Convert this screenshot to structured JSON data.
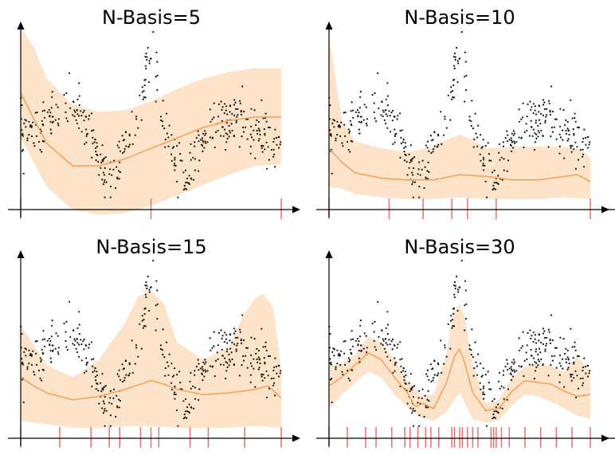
{
  "chart_data": [
    {
      "type": "scatter",
      "title": "N-Basis=5",
      "xlabel": "",
      "ylabel": "",
      "xlim": [
        0,
        1
      ],
      "ylim": [
        -0.05,
        1.0
      ],
      "grid": false,
      "series": [
        {
          "points": "data points"
        },
        {
          "mean_line": [
            [
              0,
              0.62
            ],
            [
              0.05,
              0.47
            ],
            [
              0.1,
              0.33
            ],
            [
              0.2,
              0.2
            ],
            [
              0.3,
              0.2
            ],
            [
              0.4,
              0.24
            ],
            [
              0.5,
              0.3
            ],
            [
              0.6,
              0.36
            ],
            [
              0.7,
              0.42
            ],
            [
              0.8,
              0.46
            ],
            [
              0.9,
              0.48
            ],
            [
              1,
              0.48
            ]
          ]
        },
        {
          "band_upper": [
            [
              0,
              1.0
            ],
            [
              0.05,
              0.88
            ],
            [
              0.1,
              0.7
            ],
            [
              0.2,
              0.55
            ],
            [
              0.3,
              0.51
            ],
            [
              0.4,
              0.52
            ],
            [
              0.5,
              0.57
            ],
            [
              0.6,
              0.64
            ],
            [
              0.7,
              0.7
            ],
            [
              0.8,
              0.74
            ],
            [
              0.9,
              0.76
            ],
            [
              1,
              0.76
            ]
          ]
        },
        {
          "band_lower": [
            [
              0,
              0.36
            ],
            [
              0.05,
              0.22
            ],
            [
              0.1,
              0.08
            ],
            [
              0.2,
              -0.05
            ],
            [
              0.3,
              -0.08
            ],
            [
              0.4,
              -0.07
            ],
            [
              0.5,
              -0.03
            ],
            [
              0.6,
              0.03
            ],
            [
              0.7,
              0.09
            ],
            [
              0.8,
              0.15
            ],
            [
              0.9,
              0.2
            ],
            [
              1,
              0.21
            ]
          ]
        }
      ],
      "knots": [
        0,
        0.5,
        1
      ]
    },
    {
      "type": "scatter",
      "title": "N-Basis=10",
      "xlabel": "",
      "ylabel": "",
      "xlim": [
        0,
        1
      ],
      "ylim": [
        -0.05,
        1.0
      ],
      "grid": false,
      "series": [
        {
          "points": "data points"
        },
        {
          "mean_line": [
            [
              0,
              0.3
            ],
            [
              0.05,
              0.22
            ],
            [
              0.1,
              0.16
            ],
            [
              0.2,
              0.13
            ],
            [
              0.3,
              0.12
            ],
            [
              0.4,
              0.12
            ],
            [
              0.5,
              0.15
            ],
            [
              0.6,
              0.14
            ],
            [
              0.7,
              0.12
            ],
            [
              0.8,
              0.12
            ],
            [
              0.9,
              0.14
            ],
            [
              0.95,
              0.15
            ],
            [
              1,
              0.11
            ]
          ]
        },
        {
          "band_upper": [
            [
              0,
              0.95
            ],
            [
              0.02,
              0.75
            ],
            [
              0.05,
              0.46
            ],
            [
              0.1,
              0.34
            ],
            [
              0.2,
              0.3
            ],
            [
              0.3,
              0.28
            ],
            [
              0.4,
              0.31
            ],
            [
              0.45,
              0.35
            ],
            [
              0.5,
              0.38
            ],
            [
              0.55,
              0.35
            ],
            [
              0.6,
              0.3
            ],
            [
              0.7,
              0.31
            ],
            [
              0.8,
              0.31
            ],
            [
              0.9,
              0.31
            ],
            [
              0.95,
              0.3
            ],
            [
              1,
              0.25
            ]
          ]
        },
        {
          "band_lower": [
            [
              0,
              0.08
            ],
            [
              0.05,
              0.07
            ],
            [
              0.1,
              0.04
            ],
            [
              0.2,
              0.02
            ],
            [
              0.3,
              0.01
            ],
            [
              0.4,
              0.01
            ],
            [
              0.5,
              0.02
            ],
            [
              0.6,
              0.01
            ],
            [
              0.7,
              0.01
            ],
            [
              0.8,
              0.01
            ],
            [
              0.9,
              0.02
            ],
            [
              1,
              0.01
            ]
          ]
        }
      ],
      "knots": [
        0,
        0.23,
        0.36,
        0.47,
        0.53,
        0.64,
        1
      ]
    },
    {
      "type": "scatter",
      "title": "N-Basis=15",
      "xlabel": "",
      "ylabel": "",
      "xlim": [
        0,
        1
      ],
      "ylim": [
        -0.05,
        1.0
      ],
      "grid": false,
      "series": [
        {
          "points": "data points"
        },
        {
          "mean_line": [
            [
              0,
              0.3
            ],
            [
              0.05,
              0.25
            ],
            [
              0.1,
              0.21
            ],
            [
              0.2,
              0.17
            ],
            [
              0.3,
              0.19
            ],
            [
              0.4,
              0.23
            ],
            [
              0.5,
              0.28
            ],
            [
              0.55,
              0.26
            ],
            [
              0.6,
              0.23
            ],
            [
              0.7,
              0.2
            ],
            [
              0.8,
              0.21
            ],
            [
              0.9,
              0.23
            ],
            [
              0.95,
              0.25
            ],
            [
              1,
              0.18
            ]
          ]
        },
        {
          "band_upper": [
            [
              0,
              0.6
            ],
            [
              0.1,
              0.37
            ],
            [
              0.2,
              0.3
            ],
            [
              0.3,
              0.4
            ],
            [
              0.4,
              0.61
            ],
            [
              0.45,
              0.76
            ],
            [
              0.5,
              0.8
            ],
            [
              0.55,
              0.72
            ],
            [
              0.6,
              0.5
            ],
            [
              0.7,
              0.4
            ],
            [
              0.8,
              0.47
            ],
            [
              0.85,
              0.64
            ],
            [
              0.9,
              0.75
            ],
            [
              0.93,
              0.78
            ],
            [
              0.97,
              0.7
            ],
            [
              1,
              0.35
            ]
          ]
        },
        {
          "band_lower": [
            [
              0,
              0.05
            ],
            [
              0.1,
              0.03
            ],
            [
              0.2,
              0.01
            ],
            [
              0.3,
              0.01
            ],
            [
              0.4,
              0.02
            ],
            [
              0.5,
              0.02
            ],
            [
              0.6,
              0.01
            ],
            [
              0.7,
              0.01
            ],
            [
              0.8,
              0.01
            ],
            [
              0.9,
              0.02
            ],
            [
              1,
              0.01
            ]
          ]
        }
      ],
      "knots": [
        0,
        0.15,
        0.27,
        0.34,
        0.38,
        0.46,
        0.5,
        0.53,
        0.65,
        0.72,
        0.86,
        1
      ]
    },
    {
      "type": "scatter",
      "title": "N-Basis=30",
      "xlabel": "",
      "ylabel": "",
      "xlim": [
        0,
        1
      ],
      "ylim": [
        -0.05,
        1.0
      ],
      "grid": false,
      "series": [
        {
          "points": "data points"
        },
        {
          "mean_line": [
            [
              0,
              0.25
            ],
            [
              0.05,
              0.3
            ],
            [
              0.1,
              0.37
            ],
            [
              0.15,
              0.44
            ],
            [
              0.2,
              0.4
            ],
            [
              0.25,
              0.3
            ],
            [
              0.3,
              0.21
            ],
            [
              0.33,
              0.13
            ],
            [
              0.36,
              0.15
            ],
            [
              0.4,
              0.12
            ],
            [
              0.45,
              0.27
            ],
            [
              0.48,
              0.42
            ],
            [
              0.5,
              0.46
            ],
            [
              0.52,
              0.38
            ],
            [
              0.55,
              0.21
            ],
            [
              0.6,
              0.11
            ],
            [
              0.65,
              0.12
            ],
            [
              0.7,
              0.22
            ],
            [
              0.75,
              0.28
            ],
            [
              0.8,
              0.27
            ],
            [
              0.85,
              0.26
            ],
            [
              0.9,
              0.22
            ],
            [
              0.95,
              0.19
            ],
            [
              1,
              0.2
            ]
          ]
        },
        {
          "band_upper": [
            [
              0,
              0.36
            ],
            [
              0.05,
              0.38
            ],
            [
              0.1,
              0.43
            ],
            [
              0.15,
              0.53
            ],
            [
              0.2,
              0.5
            ],
            [
              0.25,
              0.4
            ],
            [
              0.3,
              0.28
            ],
            [
              0.35,
              0.2
            ],
            [
              0.4,
              0.2
            ],
            [
              0.45,
              0.44
            ],
            [
              0.48,
              0.68
            ],
            [
              0.5,
              0.72
            ],
            [
              0.52,
              0.64
            ],
            [
              0.55,
              0.38
            ],
            [
              0.6,
              0.15
            ],
            [
              0.65,
              0.17
            ],
            [
              0.7,
              0.3
            ],
            [
              0.75,
              0.36
            ],
            [
              0.8,
              0.38
            ],
            [
              0.85,
              0.36
            ],
            [
              0.9,
              0.33
            ],
            [
              0.95,
              0.42
            ],
            [
              1,
              0.33
            ]
          ]
        },
        {
          "band_lower": [
            [
              0,
              0.12
            ],
            [
              0.05,
              0.2
            ],
            [
              0.1,
              0.27
            ],
            [
              0.15,
              0.33
            ],
            [
              0.2,
              0.3
            ],
            [
              0.25,
              0.2
            ],
            [
              0.3,
              0.13
            ],
            [
              0.35,
              0.07
            ],
            [
              0.4,
              0.05
            ],
            [
              0.45,
              0.1
            ],
            [
              0.48,
              0.17
            ],
            [
              0.5,
              0.21
            ],
            [
              0.52,
              0.15
            ],
            [
              0.55,
              0.06
            ],
            [
              0.6,
              0.04
            ],
            [
              0.65,
              0.05
            ],
            [
              0.7,
              0.14
            ],
            [
              0.75,
              0.2
            ],
            [
              0.8,
              0.19
            ],
            [
              0.85,
              0.16
            ],
            [
              0.9,
              0.12
            ],
            [
              0.95,
              0.08
            ],
            [
              1,
              0.06
            ]
          ]
        }
      ],
      "knots": [
        0,
        0.07,
        0.14,
        0.18,
        0.24,
        0.29,
        0.31,
        0.34,
        0.37,
        0.39,
        0.42,
        0.47,
        0.48,
        0.5,
        0.51,
        0.53,
        0.55,
        0.57,
        0.62,
        0.63,
        0.64,
        0.66,
        0.69,
        0.75,
        0.81,
        0.87,
        0.93,
        1
      ]
    }
  ],
  "colors": {
    "band": "#fde3c9",
    "mean": "#f5a35c",
    "points": "#111111",
    "knots": "#e57373",
    "axes": "#000000"
  }
}
